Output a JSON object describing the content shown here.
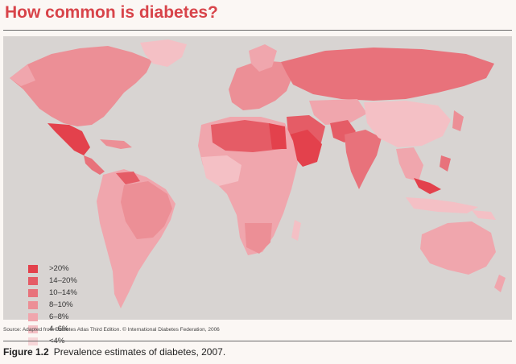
{
  "title": "How common is diabetes?",
  "legend": [
    {
      "label": ">20%",
      "color": "#e3414c"
    },
    {
      "label": "14–20%",
      "color": "#e55c66"
    },
    {
      "label": "10–14%",
      "color": "#e8727b"
    },
    {
      "label": "8–10%",
      "color": "#ec8f96"
    },
    {
      "label": "6–8%",
      "color": "#f0a6ad"
    },
    {
      "label": "4–6%",
      "color": "#f4c0c5"
    },
    {
      "label": "<4%",
      "color": "#f7d6d8"
    }
  ],
  "source": "Source: Adapted from Diabetes Atlas Third Edition. © International Diabetes Federation, 2006",
  "caption": {
    "figure": "Figure 1.2",
    "text": "Prevalence estimates of diabetes, 2007."
  },
  "colors": {
    "ocean": "#d8d4d2",
    "title": "#d8444a"
  }
}
